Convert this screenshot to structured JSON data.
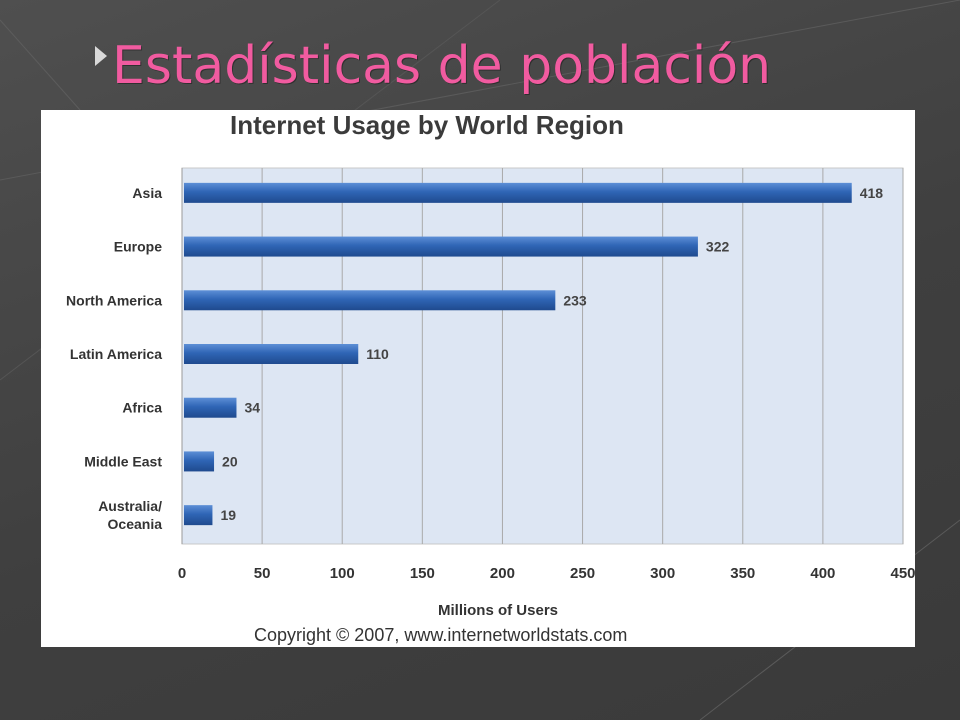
{
  "slide": {
    "title": "Estadísticas de población"
  },
  "colors": {
    "title_pink": "#f15ba0",
    "bar_blue": "#2f65b5",
    "plot_bg": "#dde6f3",
    "background": "#454545"
  },
  "chart_data": {
    "type": "bar",
    "orientation": "horizontal",
    "title": "Internet Usage by World Region",
    "categories": [
      "Asia",
      "Europe",
      "North America",
      "Latin America",
      "Africa",
      "Middle East",
      "Australia/ Oceania"
    ],
    "values": [
      418,
      322,
      233,
      110,
      34,
      20,
      19
    ],
    "value_labels": [
      "418",
      "322",
      "233",
      "110",
      "34",
      "20",
      "19"
    ],
    "xlabel": "Millions of Users",
    "ylabel": "",
    "xlim": [
      0,
      450
    ],
    "xticks": [
      "0",
      "50",
      "100",
      "150",
      "200",
      "250",
      "300",
      "350",
      "400",
      "450"
    ],
    "grid": true,
    "copyright": "Copyright © 2007, www.internetworldstats.com"
  }
}
